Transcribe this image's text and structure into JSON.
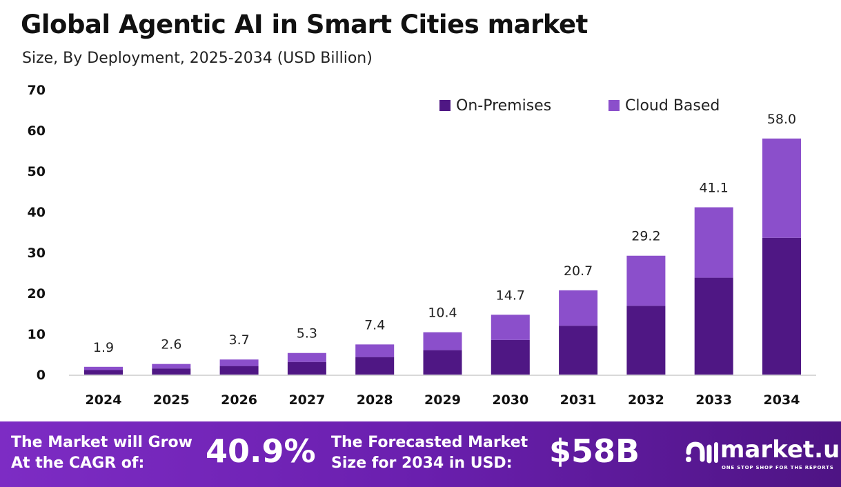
{
  "title": "Global Agentic AI in Smart Cities market",
  "subtitle": "Size, By Deployment, 2025-2034 (USD Billion)",
  "colors": {
    "on_premises": "#4f1784",
    "cloud": "#8b4fcb"
  },
  "chart_data": {
    "type": "bar",
    "stacked": true,
    "categories": [
      "2024",
      "2025",
      "2026",
      "2027",
      "2028",
      "2029",
      "2030",
      "2031",
      "2032",
      "2033",
      "2034"
    ],
    "series": [
      {
        "name": "On-Premises",
        "values": [
          1.1,
          1.5,
          2.1,
          3.1,
          4.3,
          6.0,
          8.5,
          12.0,
          16.9,
          23.8,
          33.6
        ]
      },
      {
        "name": "Cloud Based",
        "values": [
          0.8,
          1.1,
          1.6,
          2.2,
          3.1,
          4.4,
          6.2,
          8.7,
          12.3,
          17.3,
          24.4
        ]
      }
    ],
    "totals": [
      "1.9",
      "2.6",
      "3.7",
      "5.3",
      "7.4",
      "10.4",
      "14.7",
      "20.7",
      "29.2",
      "41.1",
      "58.0"
    ],
    "yticks": [
      "0",
      "10",
      "20",
      "30",
      "40",
      "50",
      "60",
      "70"
    ],
    "ylim": [
      0,
      70
    ],
    "grid": false,
    "legend": "top-right"
  },
  "footer": {
    "cagr_label_1": "The Market will Grow",
    "cagr_label_2": "At the CAGR of:",
    "cagr_value": "40.9%",
    "size_label_1": "The Forecasted Market",
    "size_label_2": "Size for 2034 in USD:",
    "size_value": "$58B"
  },
  "logo": {
    "name": "market.us",
    "tagline": "ONE STOP SHOP FOR THE REPORTS"
  }
}
